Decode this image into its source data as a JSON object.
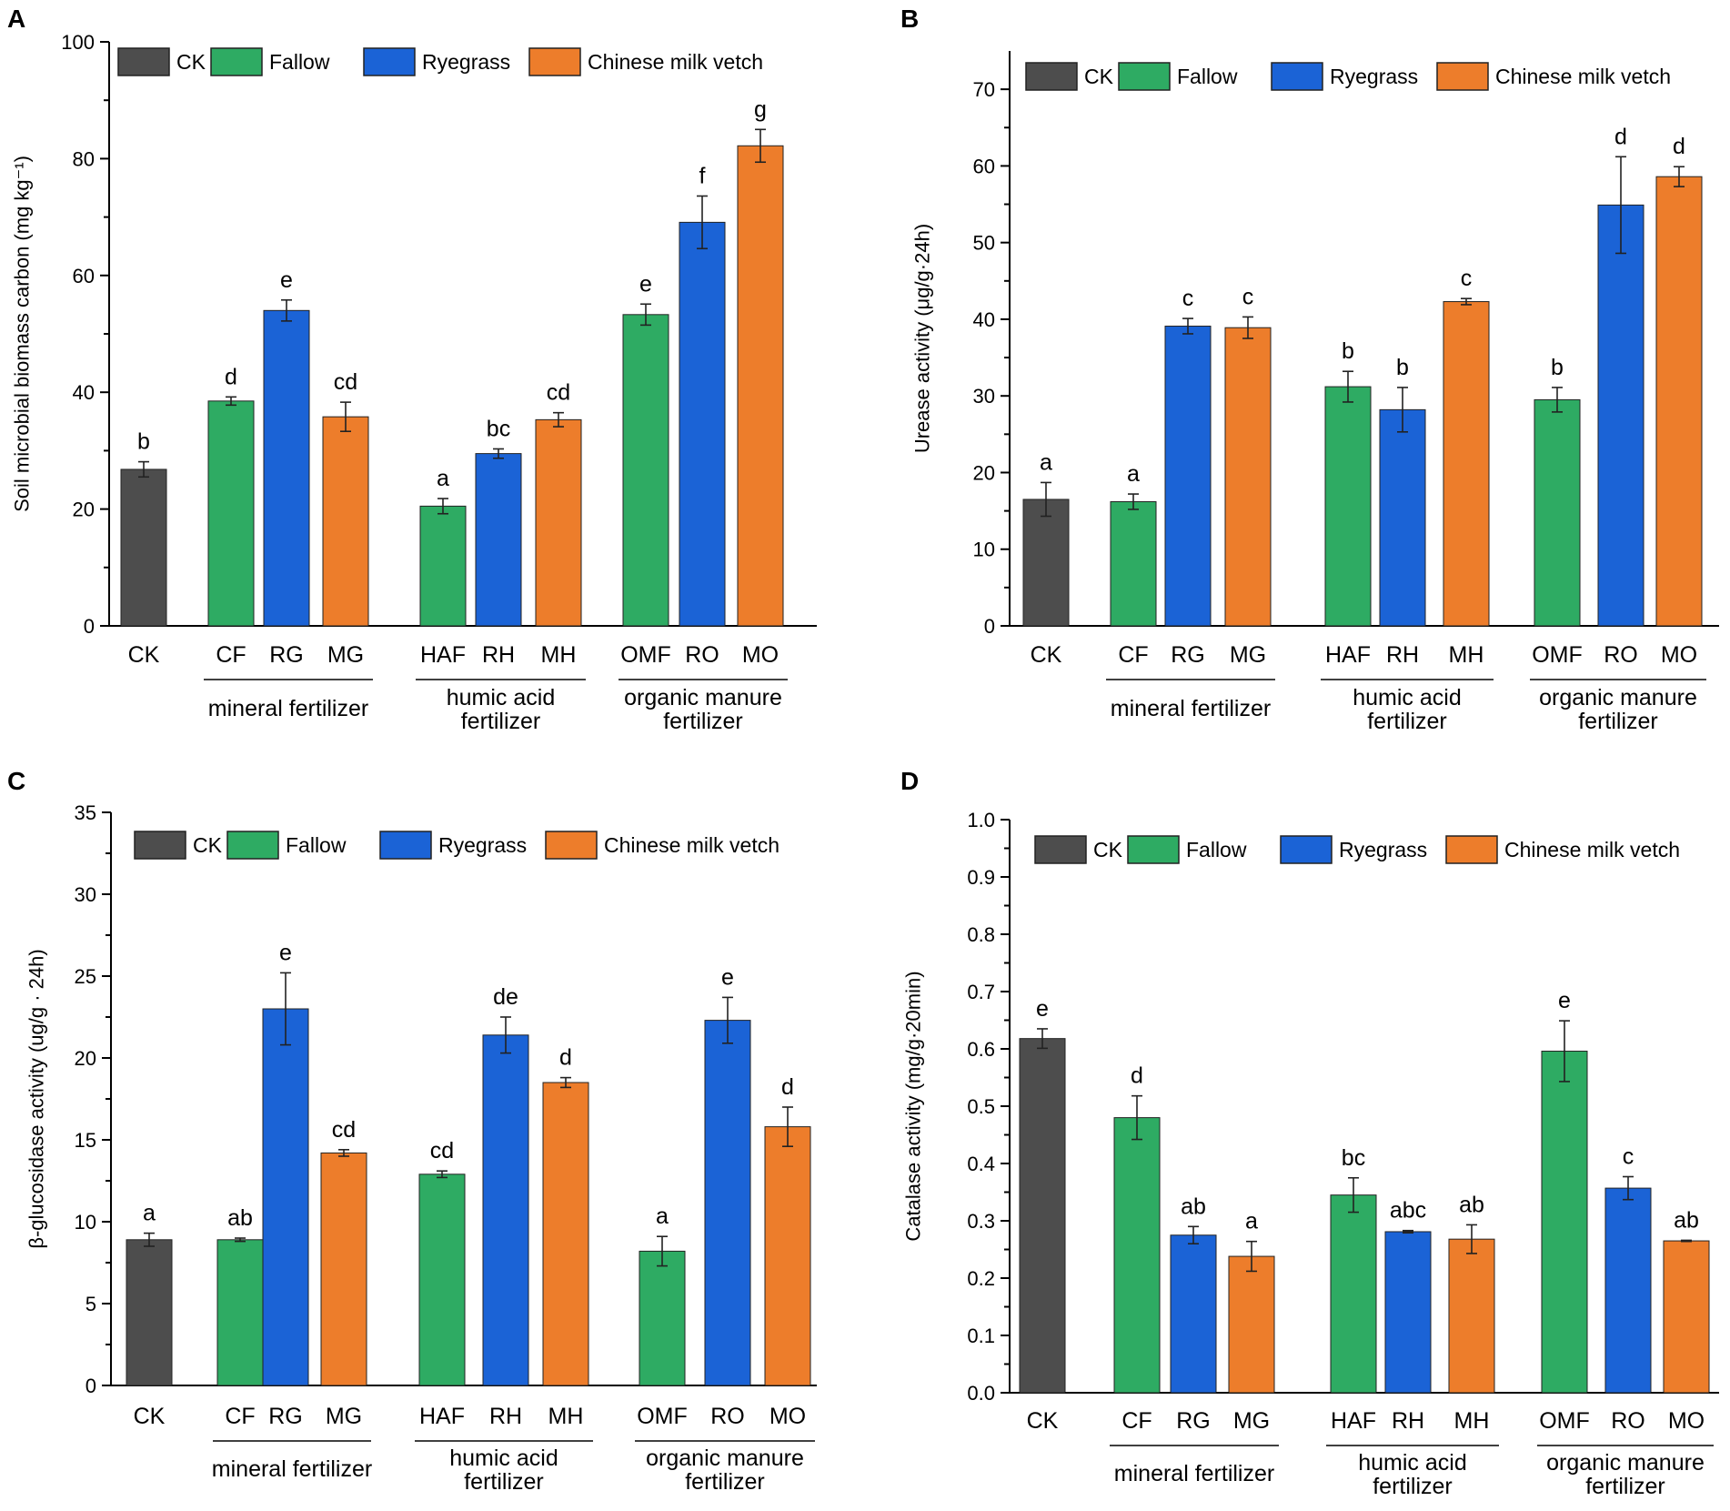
{
  "figure": {
    "series_names": [
      "CK",
      "Fallow",
      "Ryegrass",
      "Chinese milk vetch"
    ],
    "colors": {
      "CK": "#4d4d4d",
      "Fallow": "#2eab63",
      "Ryegrass": "#1b63d6",
      "Chinese milk vetch": "#ed7d2b"
    },
    "categories": [
      "CK",
      "CF",
      "RG",
      "MG",
      "HAF",
      "RH",
      "MH",
      "OMF",
      "RO",
      "MO"
    ],
    "category_series": [
      "CK",
      "Fallow",
      "Ryegrass",
      "Chinese milk vetch",
      "Fallow",
      "Ryegrass",
      "Chinese milk vetch",
      "Fallow",
      "Ryegrass",
      "Chinese milk vetch"
    ],
    "groups": [
      {
        "lines": [
          "mineral fertilizer"
        ],
        "members": [
          "CF",
          "RG",
          "MG"
        ]
      },
      {
        "lines": [
          "humic acid",
          "fertilizer"
        ],
        "members": [
          "HAF",
          "RH",
          "MH"
        ]
      },
      {
        "lines": [
          "organic manure",
          "fertilizer"
        ],
        "members": [
          "OMF",
          "RO",
          "MO"
        ]
      }
    ]
  },
  "chart_data": [
    {
      "panel": "A",
      "type": "bar",
      "ylabel": "Soil microbial biomass carbon (mg kg⁻¹)",
      "ylim": [
        0,
        100
      ],
      "yticks": [
        "0",
        "20",
        "40",
        "60",
        "80",
        "100"
      ],
      "categories": [
        "CK",
        "CF",
        "RG",
        "MG",
        "HAF",
        "RH",
        "MH",
        "OMF",
        "RO",
        "MO"
      ],
      "values": [
        26.8,
        38.5,
        54.0,
        35.8,
        20.5,
        29.5,
        35.3,
        53.3,
        69.1,
        82.2
      ],
      "errors": [
        1.3,
        0.7,
        1.8,
        2.5,
        1.3,
        0.8,
        1.2,
        1.8,
        4.5,
        2.8
      ],
      "labels": [
        "b",
        "d",
        "e",
        "cd",
        "a",
        "bc",
        "cd",
        "e",
        "f",
        "g"
      ]
    },
    {
      "panel": "B",
      "type": "bar",
      "ylabel": "Urease activity (μg/g·24h)",
      "ylim": [
        0,
        75
      ],
      "yticks": [
        "0",
        "10",
        "20",
        "30",
        "40",
        "50",
        "60",
        "70"
      ],
      "categories": [
        "CK",
        "CF",
        "RG",
        "MG",
        "HAF",
        "RH",
        "MH",
        "OMF",
        "RO",
        "MO"
      ],
      "values": [
        16.5,
        16.2,
        39.1,
        38.9,
        31.2,
        28.2,
        42.3,
        29.5,
        54.9,
        58.6
      ],
      "errors": [
        2.2,
        1.0,
        1.0,
        1.4,
        2.0,
        2.9,
        0.4,
        1.6,
        6.3,
        1.3
      ],
      "labels": [
        "a",
        "a",
        "c",
        "c",
        "b",
        "b",
        "c",
        "b",
        "d",
        "d"
      ]
    },
    {
      "panel": "C",
      "type": "bar",
      "ylabel": "β-glucosidase activity (ug/g · 24h)",
      "ylim": [
        0,
        35
      ],
      "yticks": [
        "0",
        "5",
        "10",
        "15",
        "20",
        "25",
        "30",
        "35"
      ],
      "categories": [
        "CK",
        "CF",
        "RG",
        "MG",
        "HAF",
        "RH",
        "MH",
        "OMF",
        "RO",
        "MO"
      ],
      "values": [
        8.9,
        8.9,
        23.0,
        14.2,
        12.9,
        21.4,
        18.5,
        8.2,
        22.3,
        15.8
      ],
      "errors": [
        0.4,
        0.1,
        2.2,
        0.2,
        0.2,
        1.1,
        0.3,
        0.9,
        1.4,
        1.2
      ],
      "labels": [
        "a",
        "ab",
        "e",
        "cd",
        "cd",
        "de",
        "d",
        "a",
        "e",
        "d"
      ]
    },
    {
      "panel": "D",
      "type": "bar",
      "ylabel": "Catalase activity (mg/g·20min)",
      "ylim": [
        0,
        1.0
      ],
      "yticks": [
        "0.0",
        "0.1",
        "0.2",
        "0.3",
        "0.4",
        "0.5",
        "0.6",
        "0.7",
        "0.8",
        "0.9",
        "1.0"
      ],
      "categories": [
        "CK",
        "CF",
        "RG",
        "MG",
        "HAF",
        "RH",
        "MH",
        "OMF",
        "RO",
        "MO"
      ],
      "values": [
        0.618,
        0.48,
        0.275,
        0.238,
        0.345,
        0.281,
        0.268,
        0.596,
        0.357,
        0.265
      ],
      "errors": [
        0.017,
        0.038,
        0.015,
        0.026,
        0.03,
        0.002,
        0.025,
        0.053,
        0.02,
        0.001
      ],
      "labels": [
        "e",
        "d",
        "ab",
        "a",
        "bc",
        "abc",
        "ab",
        "e",
        "c",
        "ab"
      ]
    }
  ]
}
